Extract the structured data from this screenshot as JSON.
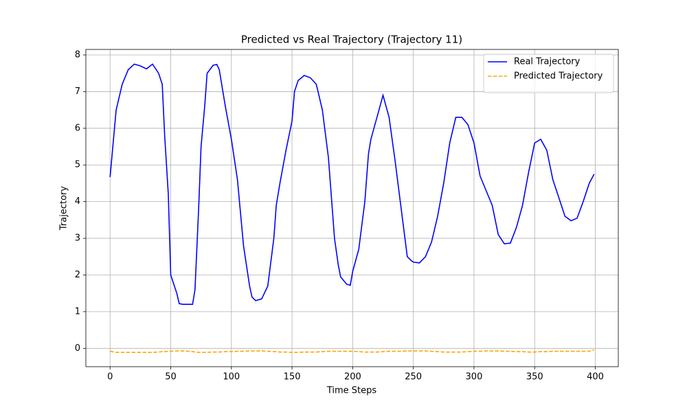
{
  "chart_data": {
    "type": "line",
    "title": "Predicted vs Real Trajectory (Trajectory 11)",
    "x_label": "Time Steps",
    "y_label": "Trajectory",
    "x": [
      0,
      5,
      10,
      15,
      20,
      25,
      30,
      35,
      40,
      43,
      45,
      48,
      50,
      55,
      57,
      60,
      65,
      68,
      70,
      73,
      75,
      78,
      80,
      85,
      88,
      90,
      95,
      100,
      105,
      110,
      115,
      117,
      120,
      125,
      130,
      135,
      137,
      140,
      145,
      150,
      152,
      155,
      160,
      165,
      170,
      175,
      180,
      185,
      188,
      190,
      195,
      198,
      200,
      205,
      210,
      213,
      215,
      220,
      225,
      230,
      235,
      240,
      245,
      248,
      250,
      255,
      260,
      265,
      270,
      275,
      280,
      285,
      290,
      295,
      300,
      305,
      310,
      315,
      320,
      325,
      330,
      335,
      340,
      345,
      350,
      355,
      360,
      365,
      370,
      375,
      380,
      385,
      390,
      395,
      399
    ],
    "series": [
      {
        "name": "Real Trajectory",
        "color": "#0000ff",
        "dash": "solid",
        "values": [
          4.67,
          6.5,
          7.2,
          7.6,
          7.75,
          7.7,
          7.62,
          7.75,
          7.5,
          7.2,
          5.8,
          4.2,
          2.0,
          1.5,
          1.22,
          1.2,
          1.2,
          1.2,
          1.6,
          3.8,
          5.5,
          6.6,
          7.5,
          7.72,
          7.74,
          7.6,
          6.6,
          5.7,
          4.6,
          2.8,
          1.7,
          1.4,
          1.3,
          1.35,
          1.7,
          3.0,
          3.9,
          4.5,
          5.4,
          6.2,
          7.0,
          7.3,
          7.44,
          7.38,
          7.2,
          6.5,
          5.2,
          3.0,
          2.3,
          1.95,
          1.75,
          1.72,
          2.1,
          2.7,
          4.0,
          5.3,
          5.7,
          6.3,
          6.9,
          6.3,
          5.1,
          3.8,
          2.5,
          2.4,
          2.35,
          2.33,
          2.5,
          2.9,
          3.6,
          4.5,
          5.6,
          6.3,
          6.3,
          6.1,
          5.6,
          4.7,
          4.3,
          3.9,
          3.1,
          2.85,
          2.87,
          3.3,
          3.9,
          4.8,
          5.6,
          5.7,
          5.4,
          4.6,
          4.1,
          3.6,
          3.48,
          3.55,
          4.0,
          4.5,
          4.75
        ]
      },
      {
        "name": "Predicted Trajectory",
        "color": "#ffa500",
        "dash": "dashed",
        "values": [
          -0.08,
          -0.11,
          -0.11,
          -0.11,
          -0.11,
          -0.11,
          -0.11,
          -0.11,
          -0.1,
          -0.09,
          -0.09,
          -0.08,
          -0.08,
          -0.07,
          -0.07,
          -0.07,
          -0.08,
          -0.09,
          -0.1,
          -0.11,
          -0.11,
          -0.11,
          -0.11,
          -0.1,
          -0.1,
          -0.1,
          -0.09,
          -0.09,
          -0.08,
          -0.08,
          -0.07,
          -0.07,
          -0.07,
          -0.07,
          -0.08,
          -0.09,
          -0.09,
          -0.1,
          -0.1,
          -0.11,
          -0.11,
          -0.11,
          -0.1,
          -0.1,
          -0.1,
          -0.09,
          -0.08,
          -0.08,
          -0.08,
          -0.08,
          -0.08,
          -0.08,
          -0.08,
          -0.09,
          -0.1,
          -0.1,
          -0.1,
          -0.1,
          -0.09,
          -0.08,
          -0.08,
          -0.08,
          -0.07,
          -0.07,
          -0.07,
          -0.07,
          -0.07,
          -0.08,
          -0.09,
          -0.1,
          -0.1,
          -0.1,
          -0.1,
          -0.09,
          -0.08,
          -0.08,
          -0.07,
          -0.07,
          -0.07,
          -0.08,
          -0.08,
          -0.09,
          -0.09,
          -0.1,
          -0.1,
          -0.09,
          -0.09,
          -0.08,
          -0.08,
          -0.08,
          -0.08,
          -0.08,
          -0.08,
          -0.08,
          -0.04
        ]
      }
    ],
    "xlim": [
      -19.95,
      418.95
    ],
    "ylim": [
      -0.5,
      8.15
    ],
    "xticks": [
      0,
      50,
      100,
      150,
      200,
      250,
      300,
      350,
      400
    ],
    "yticks": [
      0,
      1,
      2,
      3,
      4,
      5,
      6,
      7,
      8
    ],
    "grid": true,
    "legend": "upper right"
  }
}
